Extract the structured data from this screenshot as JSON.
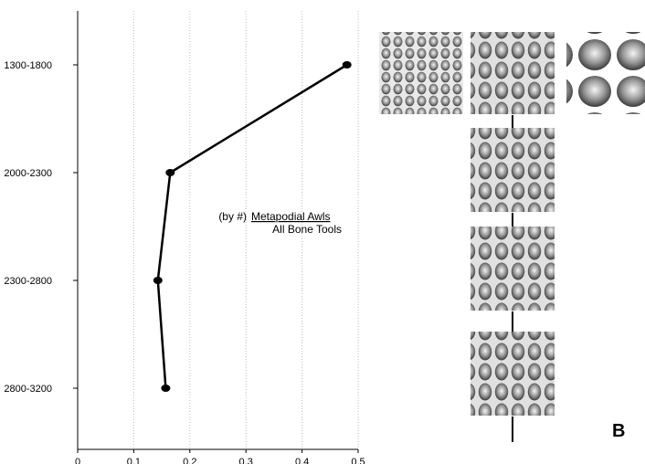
{
  "chart_data": {
    "type": "line",
    "orientation": "horizontal-values",
    "categories": [
      "1300-1800",
      "2000-2300",
      "2300-2800",
      "2800-3200"
    ],
    "series": [
      {
        "values": [
          0.48,
          0.165,
          0.143,
          0.157
        ]
      }
    ],
    "xlim": [
      0,
      0.5
    ],
    "xticks": [
      "0",
      "0.1",
      "0.2",
      "0.3",
      "0.4",
      "0.5"
    ],
    "grid": "vertical dotted",
    "annotation": {
      "prefix": "(by #)",
      "numerator": "Metapodial Awls",
      "denominator": "All Bone Tools"
    },
    "line_color": "#000000"
  },
  "panel_b": {
    "label": "B",
    "tile_style": "grayscale hexagonal blob texture"
  }
}
